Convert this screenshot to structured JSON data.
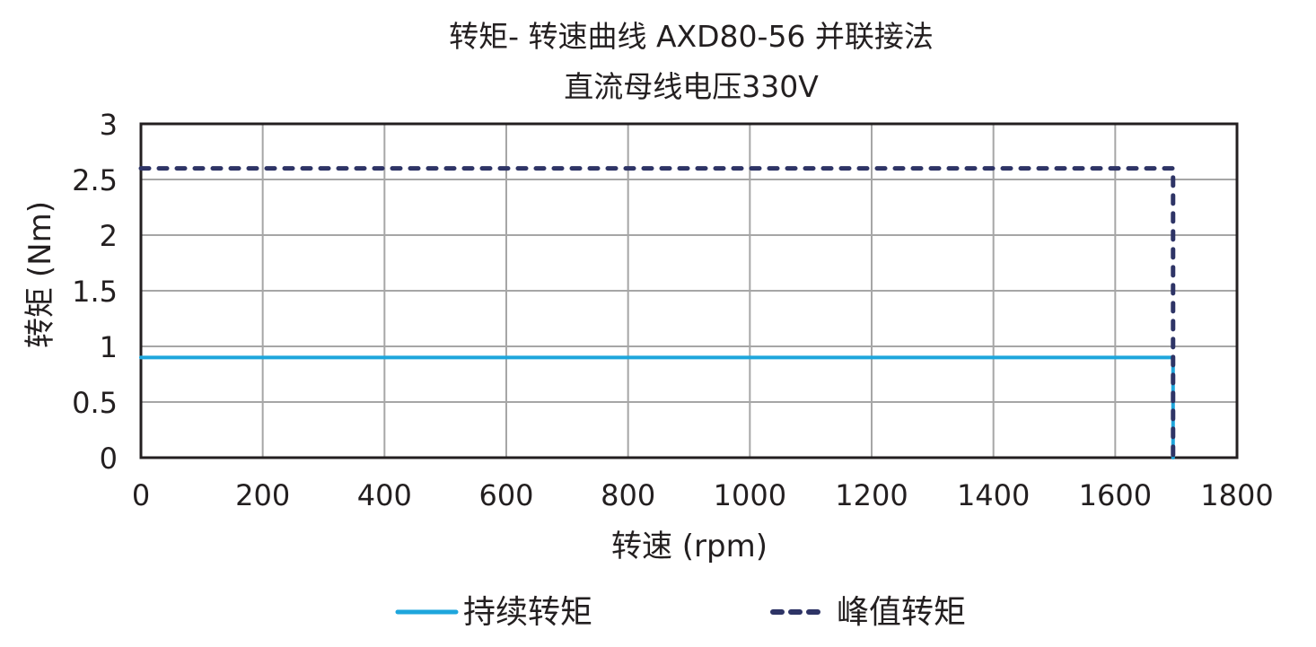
{
  "chart_data": {
    "type": "line",
    "title": "转矩- 转速曲线 AXD80-56 并联接法",
    "subtitle": "直流母线电压330V",
    "xlabel": "转速 (rpm)",
    "ylabel": "转矩 (Nm)",
    "xlim": [
      0,
      1800
    ],
    "ylim": [
      0,
      3
    ],
    "xticks": [
      "0",
      "200",
      "400",
      "600",
      "800",
      "1000",
      "1200",
      "1400",
      "1600",
      "1800"
    ],
    "yticks": [
      "0",
      "0.5",
      "1",
      "1.5",
      "2",
      "2.5",
      "3"
    ],
    "grid": true,
    "legend_position": "bottom",
    "series": [
      {
        "name": "持续转矩",
        "style": "solid",
        "color": "#1ea6dc",
        "x": [
          0,
          1695,
          1695
        ],
        "y": [
          0.9,
          0.9,
          0
        ]
      },
      {
        "name": "峰值转矩",
        "style": "dashed",
        "color": "#2e3466",
        "x": [
          0,
          1695,
          1695
        ],
        "y": [
          2.6,
          2.6,
          0
        ]
      }
    ]
  },
  "legend": {
    "continuous_label": "持续转矩",
    "peak_label": "峰值转矩"
  },
  "colors": {
    "continuous": "#1ea6dc",
    "peak": "#2e3466",
    "grid": "#a6a6a6",
    "axis": "#231f20"
  }
}
